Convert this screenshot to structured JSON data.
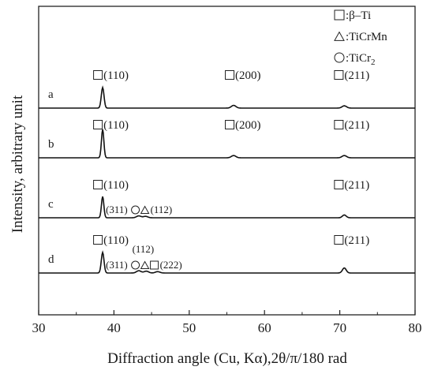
{
  "chart_data": {
    "type": "line",
    "xlabel": "Diffraction angle (Cu, Kα),2θ/π/180 rad",
    "ylabel": "Intensity, arbitrary unit",
    "xlim": [
      30,
      80
    ],
    "xticks": [
      "30",
      "40",
      "50",
      "60",
      "70",
      "80"
    ],
    "grid": false,
    "legend_position": "top-right",
    "legend": [
      {
        "symbol": "square",
        "label": "β–Ti"
      },
      {
        "symbol": "triangle",
        "label": "TiCrMn"
      },
      {
        "symbol": "circle",
        "label": "TiCr",
        "sub": "2"
      }
    ],
    "series": [
      {
        "name": "a",
        "peaks": [
          {
            "x": 38.5,
            "h": 0.9,
            "w": 0.18
          },
          {
            "x": 55.9,
            "h": 0.12,
            "w": 0.3
          },
          {
            "x": 70.6,
            "h": 0.1,
            "w": 0.3
          }
        ],
        "annotations": [
          {
            "x": 38.5,
            "items": [
              {
                "sym": "square",
                "text": "(110)"
              }
            ]
          },
          {
            "x": 56.0,
            "items": [
              {
                "sym": "square",
                "text": "(200)"
              }
            ]
          },
          {
            "x": 70.5,
            "items": [
              {
                "sym": "square",
                "text": "(211)"
              }
            ]
          }
        ]
      },
      {
        "name": "b",
        "peaks": [
          {
            "x": 38.5,
            "h": 1.0,
            "w": 0.16
          },
          {
            "x": 55.9,
            "h": 0.08,
            "w": 0.3
          },
          {
            "x": 70.6,
            "h": 0.08,
            "w": 0.3
          }
        ],
        "annotations": [
          {
            "x": 38.5,
            "items": [
              {
                "sym": "square",
                "text": "(110)"
              }
            ]
          },
          {
            "x": 56.0,
            "items": [
              {
                "sym": "square",
                "text": "(200)"
              }
            ]
          },
          {
            "x": 70.5,
            "items": [
              {
                "sym": "square",
                "text": "(211)"
              }
            ]
          }
        ]
      },
      {
        "name": "c",
        "peaks": [
          {
            "x": 38.5,
            "h": 0.9,
            "w": 0.16
          },
          {
            "x": 43.3,
            "h": 0.08,
            "w": 0.3
          },
          {
            "x": 44.2,
            "h": 0.06,
            "w": 0.3
          },
          {
            "x": 70.6,
            "h": 0.12,
            "w": 0.25
          }
        ],
        "annotations": [
          {
            "x": 38.5,
            "items": [
              {
                "sym": "square",
                "text": "(110)"
              }
            ]
          },
          {
            "x": 70.5,
            "items": [
              {
                "sym": "square",
                "text": "(211)"
              }
            ]
          }
        ],
        "inline_annotation": {
          "x": 43.5,
          "items": [
            {
              "text": "(311)"
            },
            {
              "sym": "circle"
            },
            {
              "sym": "triangle"
            },
            {
              "text": "(112)"
            }
          ]
        }
      },
      {
        "name": "d",
        "peaks": [
          {
            "x": 38.5,
            "h": 0.9,
            "w": 0.18
          },
          {
            "x": 43.3,
            "h": 0.1,
            "w": 0.3
          },
          {
            "x": 44.3,
            "h": 0.08,
            "w": 0.3
          },
          {
            "x": 45.8,
            "h": 0.06,
            "w": 0.3
          },
          {
            "x": 70.6,
            "h": 0.22,
            "w": 0.25
          }
        ],
        "annotations": [
          {
            "x": 38.5,
            "items": [
              {
                "sym": "square",
                "text": "(110)"
              }
            ]
          },
          {
            "x": 70.5,
            "items": [
              {
                "sym": "square",
                "text": "(211)"
              }
            ]
          }
        ],
        "inline_annotation": {
          "x": 43.5,
          "items": [
            {
              "text": "(311)"
            },
            {
              "sym": "circle"
            },
            {
              "sym": "triangle"
            },
            {
              "sym": "square"
            },
            {
              "text": "(222)"
            }
          ]
        },
        "extra_label": {
          "x": 44.3,
          "text": "(112)"
        }
      }
    ]
  }
}
